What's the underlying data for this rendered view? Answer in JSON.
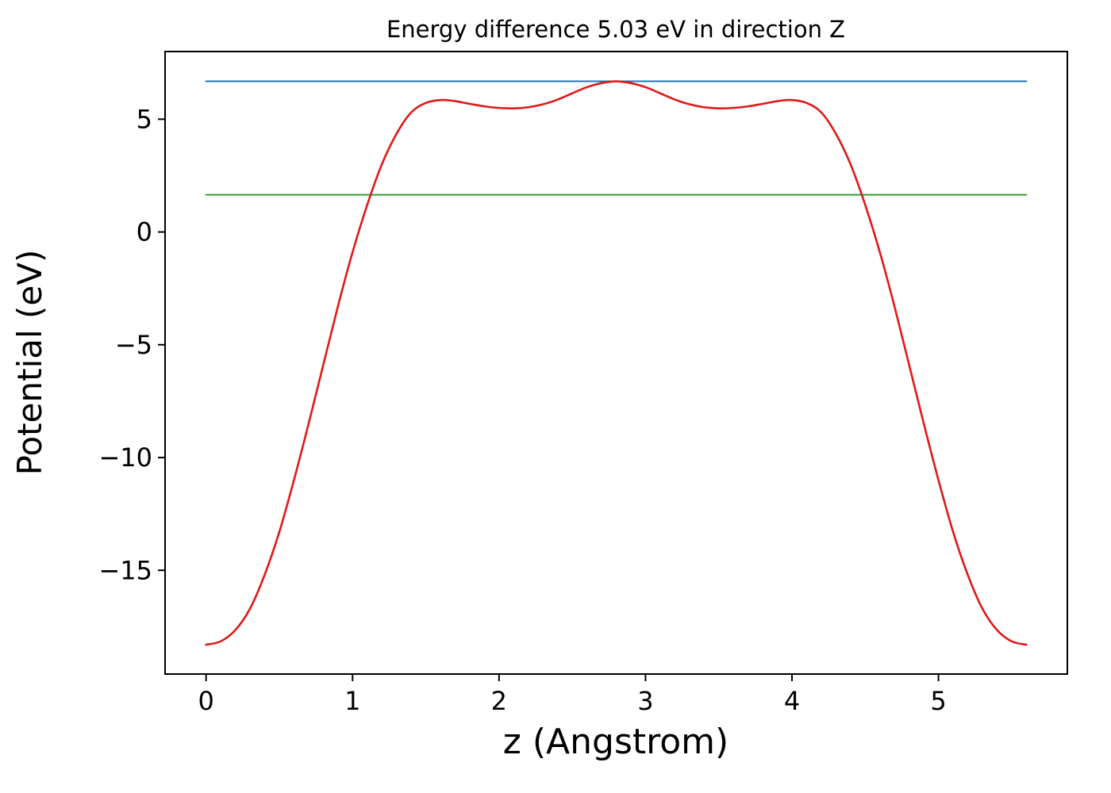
{
  "figure": {
    "background": "#ffffff"
  },
  "chart_data": {
    "type": "line",
    "title": "Energy difference 5.03 eV in direction Z",
    "xlabel": "z (Angstrom)",
    "ylabel": "Potential (eV)",
    "xlim": [
      -0.28,
      5.88
    ],
    "ylim": [
      -19.6,
      8.0
    ],
    "xticks": [
      0,
      1,
      2,
      3,
      4,
      5
    ],
    "yticks": [
      5,
      0,
      -5,
      -10,
      -15
    ],
    "grid": false,
    "legend": "none",
    "energy_difference_ev": 5.03,
    "direction": "Z",
    "series": [
      {
        "name": "vacuum-level",
        "color": "#1f77b4",
        "width": 2,
        "x": [
          0.0,
          5.6
        ],
        "y": [
          6.68,
          6.68
        ]
      },
      {
        "name": "reference-level",
        "color": "#2ca02c",
        "width": 2,
        "x": [
          0.0,
          5.6
        ],
        "y": [
          1.65,
          1.65
        ]
      },
      {
        "name": "planar-averaged-potential",
        "color": "#e01919",
        "width": 2.6,
        "smooth": true,
        "x": [
          0.0,
          0.1,
          0.2,
          0.3,
          0.4,
          0.5,
          0.6,
          0.7,
          0.8,
          0.9,
          1.0,
          1.1,
          1.2,
          1.3,
          1.4,
          1.5,
          1.6,
          1.7,
          1.8,
          1.9,
          2.0,
          2.1,
          2.2,
          2.3,
          2.4,
          2.5,
          2.6,
          2.7,
          2.8,
          2.9,
          3.0,
          3.1,
          3.2,
          3.3,
          3.4,
          3.5,
          3.6,
          3.7,
          3.8,
          3.9,
          4.0,
          4.1,
          4.2,
          4.3,
          4.4,
          4.5,
          4.6,
          4.7,
          4.8,
          4.9,
          5.0,
          5.1,
          5.2,
          5.3,
          5.4,
          5.5,
          5.6
        ],
        "y": [
          -18.3,
          -18.15,
          -17.65,
          -16.7,
          -15.2,
          -13.3,
          -11.0,
          -8.5,
          -5.9,
          -3.3,
          -0.9,
          1.2,
          3.0,
          4.35,
          5.3,
          5.72,
          5.85,
          5.8,
          5.68,
          5.57,
          5.5,
          5.48,
          5.53,
          5.66,
          5.87,
          6.15,
          6.42,
          6.6,
          6.68,
          6.6,
          6.42,
          6.15,
          5.87,
          5.66,
          5.53,
          5.48,
          5.5,
          5.57,
          5.68,
          5.8,
          5.85,
          5.72,
          5.3,
          4.35,
          3.0,
          1.2,
          -0.9,
          -3.3,
          -5.9,
          -8.5,
          -11.0,
          -13.3,
          -15.2,
          -16.7,
          -17.65,
          -18.15,
          -18.3
        ]
      }
    ]
  }
}
